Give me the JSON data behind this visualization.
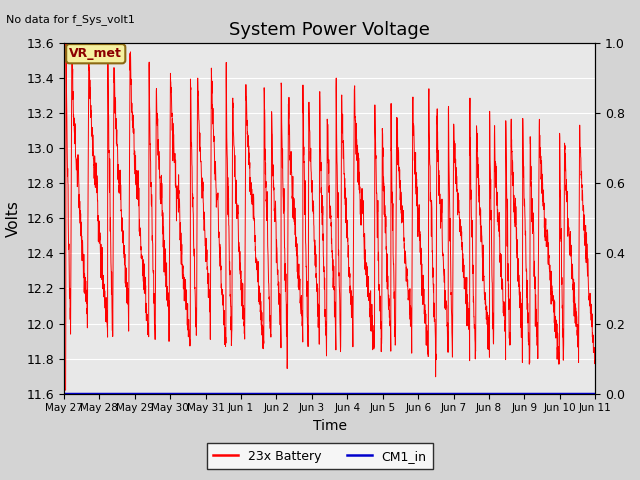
{
  "title": "System Power Voltage",
  "top_left_text": "No data for f_Sys_volt1",
  "xlabel": "Time",
  "ylabel": "Volts",
  "ylim_left": [
    11.6,
    13.6
  ],
  "ylim_right": [
    0.0,
    1.0
  ],
  "yticks_left": [
    11.6,
    11.8,
    12.0,
    12.2,
    12.4,
    12.6,
    12.8,
    13.0,
    13.2,
    13.4,
    13.6
  ],
  "yticks_right": [
    0.0,
    0.2,
    0.4,
    0.6,
    0.8,
    1.0
  ],
  "xtick_labels": [
    "May 27",
    "May 28",
    "May 29",
    "May 30",
    "May 31",
    "Jun 1",
    "Jun 2",
    "Jun 3",
    "Jun 4",
    "Jun 5",
    "Jun 6",
    "Jun 7",
    "Jun 8",
    "Jun 9",
    "Jun 10",
    "Jun 11"
  ],
  "fig_facecolor": "#d4d4d4",
  "plot_bg_color": "#e8e8e8",
  "grid_color": "#ffffff",
  "line_color_battery": "#ff0000",
  "line_color_cm1": "#0000cc",
  "legend_labels": [
    "23x Battery",
    "CM1_in"
  ],
  "vr_met_label": "VR_met",
  "vr_met_box_color": "#f5f0a0",
  "vr_met_border_color": "#8b6914",
  "num_days": 15,
  "figsize": [
    6.4,
    4.8
  ],
  "dpi": 100
}
